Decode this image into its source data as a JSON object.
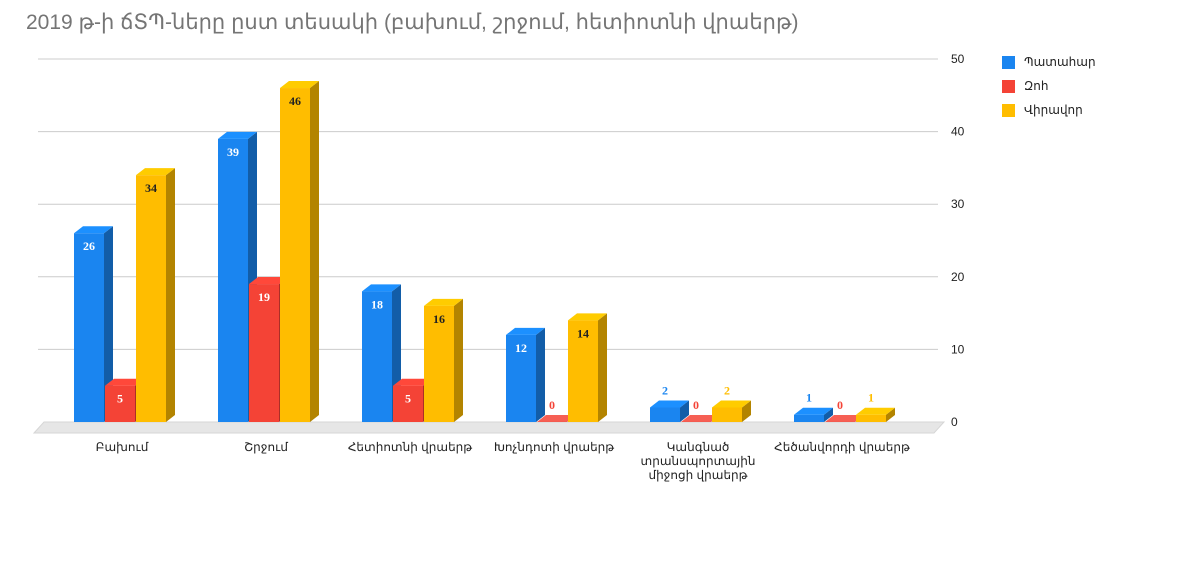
{
  "chart_data": {
    "type": "bar",
    "title": "2019 թ-ի ճՏՊ-ները ըստ տեսակի (բախում, շրջում, հետիոտնի վրաերթ)",
    "categories": [
      [
        "Բախում"
      ],
      [
        "Շրջում"
      ],
      [
        "Հետիոտնի վրաերթ"
      ],
      [
        "Խոչնդոտի վրաերթ"
      ],
      [
        "Կանգնած",
        "տրանսպորտային",
        "միջոցի վրաերթ"
      ],
      [
        "Հեծանվորդի վրաերթ"
      ]
    ],
    "series": [
      {
        "name": "Պատահար",
        "color": "#1a85f0",
        "values": [
          26,
          39,
          18,
          12,
          2,
          1
        ]
      },
      {
        "name": "Զոհ",
        "color": "#f44336",
        "values": [
          5,
          19,
          5,
          0,
          0,
          0
        ]
      },
      {
        "name": "Վիրավոր",
        "color": "#ffbd00",
        "values": [
          34,
          46,
          16,
          14,
          2,
          1
        ]
      }
    ],
    "ylim": [
      0,
      50
    ],
    "yticks": [
      "0",
      "10",
      "20",
      "30",
      "40",
      "50"
    ],
    "yaxis_side": "right",
    "grid": true,
    "legend_position": "right"
  }
}
